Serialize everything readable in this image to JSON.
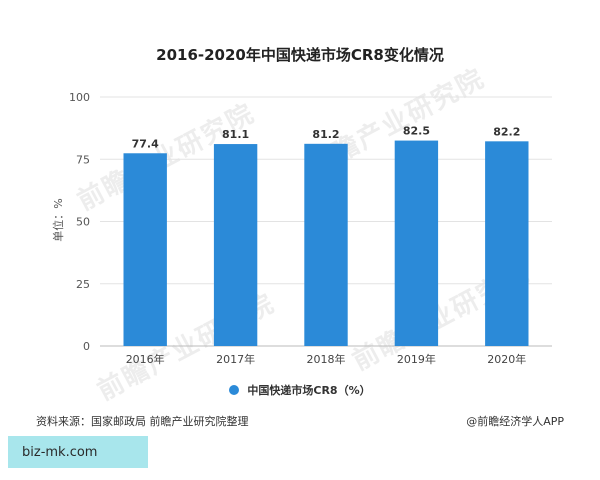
{
  "chart_data": {
    "type": "bar",
    "title": "2016-2020年中国快递市场CR8变化情况",
    "ylabel": "单位：%",
    "xlabel": "",
    "categories": [
      "2016年",
      "2017年",
      "2018年",
      "2019年",
      "2020年"
    ],
    "series": [
      {
        "name": "中国快递市场CR8（%）",
        "values": [
          77.4,
          81.1,
          81.2,
          82.5,
          82.2
        ]
      }
    ],
    "ylim": [
      0,
      100
    ],
    "yticks": [
      0,
      25,
      50,
      75,
      100
    ],
    "grid": true,
    "legend": "bottom",
    "bar_color": "#2b8ad8"
  },
  "footer": {
    "source": "资料来源：国家邮政局 前瞻产业研究院整理",
    "credit": "@前瞻经济学人APP"
  },
  "banner": {
    "text": "biz-mk.com"
  },
  "watermark": {
    "text": "前瞻产业研究院"
  }
}
